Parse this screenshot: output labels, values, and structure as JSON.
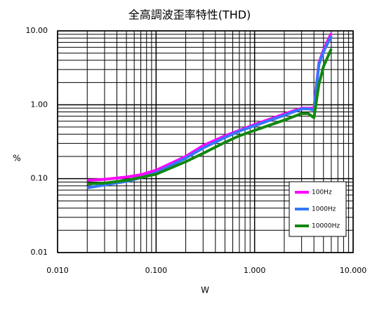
{
  "chart_data": {
    "type": "line",
    "title": "全高調波歪率特性(THD)",
    "x_label": "W",
    "y_label": "%",
    "x": [
      0.02,
      0.03,
      0.05,
      0.07,
      0.1,
      0.2,
      0.3,
      0.5,
      0.7,
      1,
      2,
      3,
      3.5,
      4,
      4.5,
      5,
      6
    ],
    "series": [
      {
        "name": "100Hz",
        "color": "#ff00ff",
        "values": [
          0.095,
          0.098,
          0.105,
          0.113,
          0.13,
          0.2,
          0.28,
          0.38,
          0.45,
          0.54,
          0.75,
          0.9,
          0.9,
          0.9,
          3.7,
          5.5,
          9.3
        ]
      },
      {
        "name": "1000Hz",
        "color": "#3377ff",
        "values": [
          0.075,
          0.082,
          0.092,
          0.103,
          0.12,
          0.19,
          0.26,
          0.36,
          0.44,
          0.52,
          0.72,
          0.88,
          0.88,
          0.85,
          3.5,
          5.2,
          8.5
        ]
      },
      {
        "name": "10000Hz",
        "color": "#118811",
        "values": [
          0.085,
          0.087,
          0.095,
          0.104,
          0.115,
          0.17,
          0.22,
          0.31,
          0.38,
          0.45,
          0.62,
          0.76,
          0.76,
          0.67,
          1.9,
          3.3,
          5.7
        ]
      }
    ],
    "xlog": true,
    "ylog": true,
    "xlim": [
      0.01,
      10
    ],
    "ylim": [
      0.01,
      10
    ],
    "xticks": [
      {
        "value": 0.01,
        "label": "0.010"
      },
      {
        "value": 0.1,
        "label": "0.100"
      },
      {
        "value": 1,
        "label": "1.000"
      },
      {
        "value": 10,
        "label": "10.000"
      }
    ],
    "yticks": [
      {
        "value": 0.01,
        "label": "0.01"
      },
      {
        "value": 0.1,
        "label": "0.10"
      },
      {
        "value": 1,
        "label": "1.00"
      },
      {
        "value": 10,
        "label": "10.00"
      }
    ],
    "grid": true,
    "minor_grid": true,
    "legend": "lower right"
  }
}
